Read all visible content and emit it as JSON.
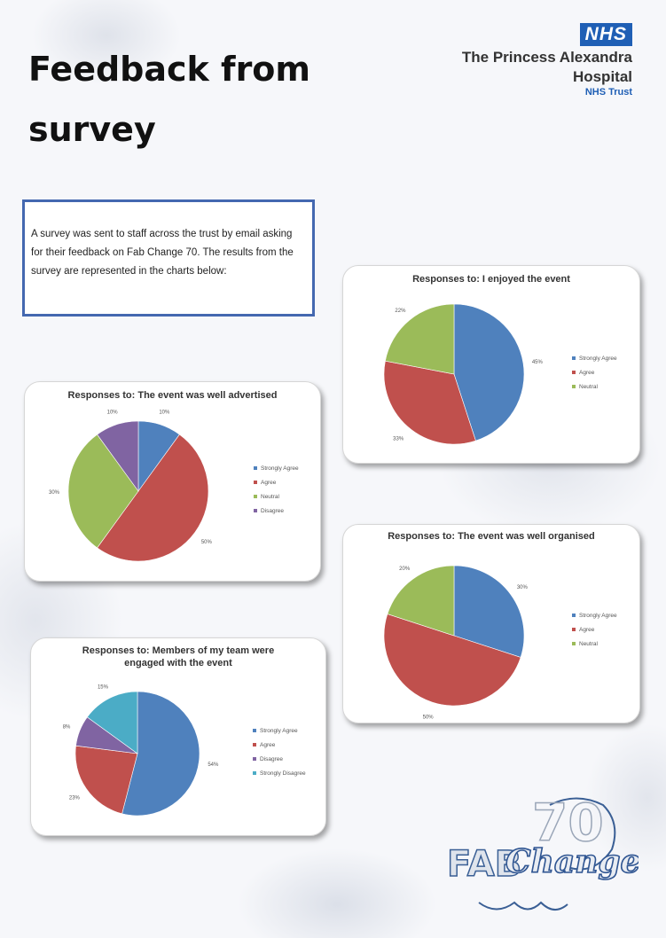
{
  "header": {
    "title": "Feedback from survey",
    "nhs_logo": "NHS",
    "org_line1": "The Princess Alexandra",
    "org_line2": "Hospital",
    "org_trust": "NHS Trust"
  },
  "intro": {
    "text": "A survey was sent to staff across the trust by email asking for their feedback on Fab Change 70. The results from the survey are represented in the charts below:"
  },
  "colors": {
    "strongly_agree": "#4f81bd",
    "agree": "#c0504d",
    "neutral": "#9bbb59",
    "disagree": "#8064a2",
    "strongly_disagree": "#4bacc6"
  },
  "chart_data": [
    {
      "type": "pie",
      "title": "Responses to: I enjoyed the event",
      "categories": [
        "Strongly Agree",
        "Agree",
        "Neutral"
      ],
      "values": [
        45,
        33,
        22
      ],
      "labels": [
        "45%",
        "33%",
        "22%"
      ],
      "legend": "right"
    },
    {
      "type": "pie",
      "title": "Responses to: The event was well advertised",
      "categories": [
        "Strongly Agree",
        "Agree",
        "Neutral",
        "Disagree"
      ],
      "values": [
        10,
        50,
        30,
        10
      ],
      "labels": [
        "10%",
        "50%",
        "30%",
        "10%"
      ],
      "legend": "right"
    },
    {
      "type": "pie",
      "title": "Responses to: The event was well organised",
      "categories": [
        "Strongly Agree",
        "Agree",
        "Neutral"
      ],
      "values": [
        30,
        50,
        20
      ],
      "labels": [
        "30%",
        "50%",
        "20%"
      ],
      "legend": "right"
    },
    {
      "type": "pie",
      "title": "Responses to: Members of my team were engaged with the event",
      "categories": [
        "Strongly Agree",
        "Agree",
        "Disagree",
        "Strongly Disagree"
      ],
      "values": [
        54,
        23,
        8,
        15
      ],
      "labels": [
        "54%",
        "23%",
        "8%",
        "15%"
      ],
      "legend": "right"
    }
  ],
  "logo": {
    "text1": "FAB",
    "text2": "Change",
    "text3": "70"
  }
}
